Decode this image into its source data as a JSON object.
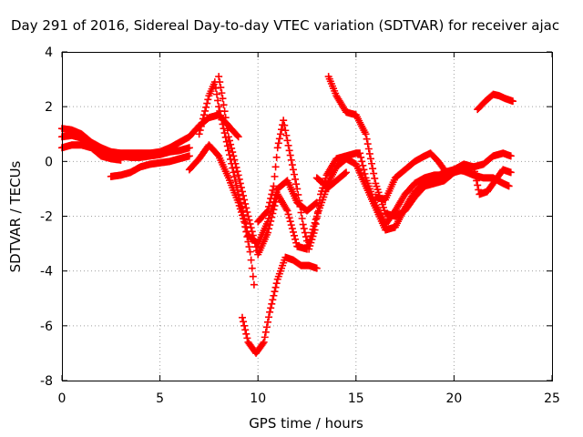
{
  "chart_data": {
    "type": "scatter",
    "title": "Day 291 of 2016, Sidereal Day-to-day VTEC variation (SDTVAR) for receiver ajac",
    "xlabel": "GPS time / hours",
    "ylabel": "SDTVAR / TECUs",
    "xlim": [
      0,
      25
    ],
    "ylim": [
      -8,
      4
    ],
    "xticks": [
      "0",
      "5",
      "10",
      "15",
      "20",
      "25"
    ],
    "yticks": [
      "-8",
      "-6",
      "-4",
      "-2",
      "0",
      "2",
      "4"
    ],
    "grid": true,
    "marker": "+",
    "color": "#ff0000",
    "series": [
      {
        "points": [
          [
            0,
            1.2
          ],
          [
            0.5,
            1.15
          ],
          [
            1,
            1.0
          ],
          [
            1.5,
            0.7
          ],
          [
            2,
            0.5
          ],
          [
            2.5,
            0.35
          ],
          [
            3,
            0.3
          ],
          [
            3.5,
            0.3
          ],
          [
            4,
            0.3
          ],
          [
            4.5,
            0.3
          ],
          [
            5,
            0.35
          ],
          [
            5.5,
            0.5
          ],
          [
            6,
            0.7
          ],
          [
            6.5,
            0.9
          ],
          [
            7,
            1.3
          ],
          [
            7.5,
            1.6
          ],
          [
            8,
            1.7
          ],
          [
            8.5,
            1.3
          ],
          [
            9,
            0.9
          ]
        ]
      },
      {
        "points": [
          [
            0,
            0.9
          ],
          [
            0.5,
            0.95
          ],
          [
            1,
            0.85
          ],
          [
            1.5,
            0.6
          ],
          [
            2,
            0.4
          ],
          [
            2.5,
            0.3
          ],
          [
            3,
            0.2
          ],
          [
            3.5,
            0.15
          ],
          [
            4,
            0.15
          ],
          [
            4.5,
            0.2
          ],
          [
            5,
            0.25
          ],
          [
            5.5,
            0.35
          ],
          [
            6,
            0.4
          ],
          [
            6.5,
            0.5
          ]
        ]
      },
      {
        "points": [
          [
            0,
            0.5
          ],
          [
            0.5,
            0.6
          ],
          [
            1,
            0.6
          ],
          [
            1.5,
            0.5
          ],
          [
            2,
            0.2
          ],
          [
            2.5,
            0.1
          ],
          [
            3,
            0.05
          ]
        ]
      },
      {
        "points": [
          [
            2.5,
            -0.55
          ],
          [
            3,
            -0.5
          ],
          [
            3.5,
            -0.4
          ],
          [
            4,
            -0.2
          ],
          [
            4.5,
            -0.1
          ],
          [
            5,
            -0.05
          ],
          [
            5.5,
            0
          ],
          [
            6,
            0.1
          ],
          [
            6.5,
            0.2
          ]
        ]
      },
      {
        "points": [
          [
            6.5,
            -0.3
          ],
          [
            7,
            0.1
          ],
          [
            7.5,
            0.6
          ],
          [
            8,
            0.2
          ],
          [
            8.5,
            -0.6
          ],
          [
            9,
            -1.5
          ],
          [
            9.3,
            -2.2
          ],
          [
            9.6,
            -3.3
          ],
          [
            9.8,
            -4.5
          ]
        ]
      },
      {
        "points": [
          [
            7,
            1.0
          ],
          [
            7.5,
            2.4
          ],
          [
            7.8,
            2.9
          ],
          [
            8,
            2.0
          ],
          [
            8.5,
            0.4
          ],
          [
            9,
            -1.2
          ],
          [
            9.5,
            -2.7
          ],
          [
            10,
            -3.0
          ],
          [
            10.5,
            -2.2
          ],
          [
            11,
            -1.0
          ],
          [
            11.5,
            -0.7
          ],
          [
            12,
            -1.5
          ],
          [
            12.5,
            -1.8
          ],
          [
            13,
            -1.5
          ]
        ]
      },
      {
        "points": [
          [
            8,
            3.1
          ],
          [
            8.2,
            2.3
          ],
          [
            8.5,
            0.9
          ],
          [
            9,
            -0.5
          ],
          [
            9.5,
            -2.0
          ],
          [
            10,
            -3.4
          ],
          [
            10.5,
            -2.6
          ],
          [
            11,
            -1.2
          ],
          [
            11.5,
            -1.8
          ],
          [
            12,
            -3.1
          ],
          [
            12.5,
            -3.2
          ],
          [
            13,
            -2.0
          ],
          [
            13.5,
            -1.0
          ],
          [
            14,
            -0.7
          ],
          [
            14.5,
            -0.4
          ]
        ]
      },
      {
        "points": [
          [
            9.2,
            -5.7
          ],
          [
            9.5,
            -6.6
          ],
          [
            9.9,
            -7.0
          ],
          [
            10.3,
            -6.6
          ],
          [
            10.6,
            -5.5
          ],
          [
            11,
            -4.3
          ],
          [
            11.4,
            -3.5
          ],
          [
            11.8,
            -3.6
          ],
          [
            12.2,
            -3.8
          ],
          [
            12.6,
            -3.8
          ],
          [
            13,
            -3.9
          ]
        ]
      },
      {
        "points": [
          [
            10,
            -2.2
          ],
          [
            10.5,
            -1.8
          ],
          [
            10.8,
            -0.9
          ],
          [
            11,
            0.5
          ],
          [
            11.3,
            1.5
          ],
          [
            11.6,
            0.4
          ],
          [
            12,
            -1.0
          ],
          [
            12.3,
            -2.3
          ],
          [
            12.6,
            -3.2
          ],
          [
            12.9,
            -2.5
          ],
          [
            13.2,
            -1.2
          ],
          [
            13.5,
            -0.5
          ],
          [
            14,
            0.1
          ],
          [
            14.5,
            0.2
          ],
          [
            15,
            0.3
          ],
          [
            15.2,
            0.3
          ],
          [
            15.5,
            -0.6
          ],
          [
            16,
            -1.6
          ],
          [
            16.5,
            -2.3
          ],
          [
            17,
            -1.8
          ],
          [
            17.5,
            -1.2
          ],
          [
            18,
            -0.8
          ],
          [
            18.5,
            -0.6
          ],
          [
            19,
            -0.5
          ],
          [
            19.5,
            -0.5
          ],
          [
            20,
            -0.3
          ],
          [
            20.5,
            -0.35
          ],
          [
            21,
            -0.5
          ],
          [
            21.5,
            -0.6
          ],
          [
            22,
            -0.6
          ],
          [
            22.5,
            -0.8
          ],
          [
            22.8,
            -0.9
          ]
        ]
      },
      {
        "points": [
          [
            13.6,
            3.1
          ],
          [
            14,
            2.4
          ],
          [
            14.5,
            1.8
          ],
          [
            15,
            1.7
          ],
          [
            15.5,
            1.0
          ],
          [
            16,
            -0.8
          ],
          [
            16.5,
            -1.9
          ],
          [
            17,
            -2.0
          ],
          [
            17.5,
            -1.8
          ],
          [
            18,
            -1.3
          ],
          [
            18.5,
            -0.9
          ],
          [
            19,
            -0.8
          ],
          [
            19.5,
            -0.7
          ],
          [
            20,
            -0.4
          ],
          [
            20.5,
            -0.3
          ],
          [
            21,
            -0.2
          ],
          [
            21.5,
            -0.1
          ],
          [
            22,
            0.2
          ],
          [
            22.5,
            0.3
          ],
          [
            22.9,
            0.2
          ]
        ]
      },
      {
        "points": [
          [
            13,
            -0.6
          ],
          [
            13.5,
            -0.9
          ],
          [
            14,
            -0.2
          ],
          [
            14.5,
            0.1
          ],
          [
            15,
            -0.1
          ],
          [
            15.5,
            -0.9
          ],
          [
            16,
            -1.7
          ],
          [
            16.5,
            -2.5
          ],
          [
            17,
            -2.4
          ],
          [
            17.5,
            -1.7
          ],
          [
            18,
            -1.1
          ],
          [
            18.5,
            -0.8
          ],
          [
            19,
            -0.6
          ],
          [
            19.5,
            -0.4
          ],
          [
            20,
            -0.3
          ],
          [
            20.5,
            -0.25
          ],
          [
            21,
            -0.2
          ]
        ]
      },
      {
        "points": [
          [
            16,
            -1.3
          ],
          [
            16.5,
            -1.4
          ],
          [
            17,
            -0.6
          ],
          [
            17.5,
            -0.3
          ],
          [
            18,
            0.0
          ],
          [
            18.5,
            0.2
          ],
          [
            18.8,
            0.3
          ],
          [
            19.2,
            0.0
          ],
          [
            19.6,
            -0.4
          ],
          [
            20,
            -0.3
          ],
          [
            20.5,
            -0.1
          ],
          [
            21,
            -0.2
          ],
          [
            21.3,
            -1.2
          ],
          [
            21.7,
            -1.1
          ],
          [
            22,
            -0.8
          ],
          [
            22.5,
            -0.3
          ],
          [
            22.9,
            -0.4
          ]
        ]
      },
      {
        "points": [
          [
            21.2,
            1.9
          ],
          [
            21.6,
            2.2
          ],
          [
            22,
            2.45
          ],
          [
            22.3,
            2.4
          ],
          [
            22.6,
            2.3
          ],
          [
            23,
            2.2
          ]
        ]
      }
    ]
  }
}
